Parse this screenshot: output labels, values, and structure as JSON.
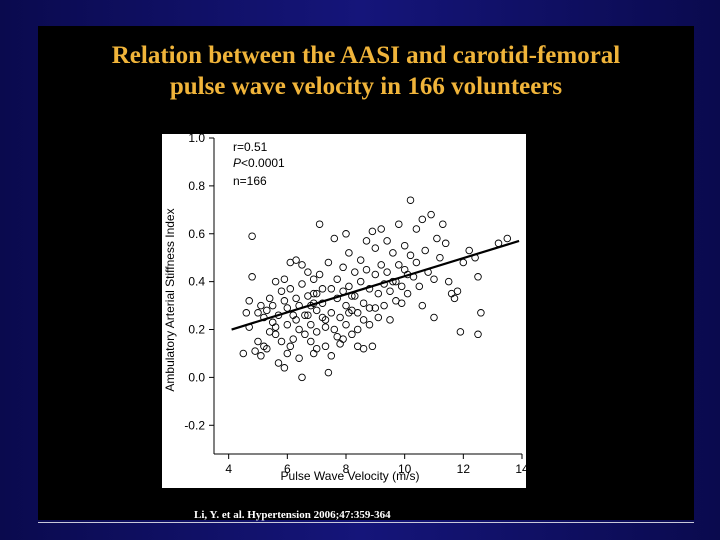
{
  "slide": {
    "title_line1": "Relation between the AASI and carotid-femoral",
    "title_line2": "pulse wave velocity in 166 volunteers",
    "citation": "Li, Y. et al. Hypertension 2006;47:359-364"
  },
  "colors": {
    "title": "#f0b43a",
    "background": "#0a0a4e",
    "panel": "#ffffff",
    "ink": "#000000"
  },
  "chart_data": {
    "type": "scatter",
    "title": "",
    "xlabel": "Pulse Wave Velocity (m/s)",
    "ylabel": "Ambulatory Arterial Stiffness Index",
    "xlim": [
      3.5,
      14
    ],
    "ylim": [
      -0.32,
      1.0
    ],
    "xticks": [
      4,
      6,
      8,
      10,
      12,
      14
    ],
    "yticks": [
      -0.2,
      0.0,
      0.2,
      0.4,
      0.6,
      0.8,
      1.0
    ],
    "xtick_labels": [
      "4",
      "6",
      "8",
      "10",
      "12",
      "14"
    ],
    "ytick_labels": [
      "-0.2",
      "0.0",
      "0.2",
      "0.4",
      "0.6",
      "0.8",
      "1.0"
    ],
    "annotations": {
      "r_label": "r=0.51",
      "p_symbol": "P",
      "p_value": "<0.0001",
      "n_label": "n=166"
    },
    "regression_line": {
      "x": [
        4.1,
        13.9
      ],
      "y": [
        0.2,
        0.57
      ]
    },
    "points": [
      [
        4.5,
        0.1
      ],
      [
        4.6,
        0.27
      ],
      [
        4.7,
        0.32
      ],
      [
        4.8,
        0.42
      ],
      [
        4.8,
        0.59
      ],
      [
        4.9,
        0.11
      ],
      [
        5.0,
        0.27
      ],
      [
        5.0,
        0.15
      ],
      [
        5.1,
        0.3
      ],
      [
        5.2,
        0.13
      ],
      [
        5.3,
        0.28
      ],
      [
        5.3,
        0.12
      ],
      [
        5.4,
        0.33
      ],
      [
        5.5,
        0.3
      ],
      [
        5.5,
        0.23
      ],
      [
        5.6,
        0.4
      ],
      [
        5.6,
        0.18
      ],
      [
        5.7,
        0.26
      ],
      [
        5.7,
        0.06
      ],
      [
        5.8,
        0.36
      ],
      [
        5.8,
        0.15
      ],
      [
        5.9,
        0.41
      ],
      [
        5.9,
        0.32
      ],
      [
        6.0,
        0.29
      ],
      [
        6.0,
        0.22
      ],
      [
        6.0,
        0.1
      ],
      [
        6.1,
        0.48
      ],
      [
        6.1,
        0.37
      ],
      [
        6.2,
        0.26
      ],
      [
        6.2,
        0.16
      ],
      [
        6.3,
        0.49
      ],
      [
        6.3,
        0.33
      ],
      [
        6.4,
        0.3
      ],
      [
        6.4,
        0.2
      ],
      [
        6.4,
        0.08
      ],
      [
        6.5,
        0.47
      ],
      [
        6.5,
        0.39
      ],
      [
        6.6,
        0.26
      ],
      [
        6.6,
        0.18
      ],
      [
        6.7,
        0.44
      ],
      [
        6.7,
        0.34
      ],
      [
        6.8,
        0.3
      ],
      [
        6.8,
        0.22
      ],
      [
        6.8,
        0.15
      ],
      [
        6.9,
        0.41
      ],
      [
        6.9,
        0.35
      ],
      [
        7.0,
        0.28
      ],
      [
        7.0,
        0.19
      ],
      [
        7.0,
        0.12
      ],
      [
        7.1,
        0.64
      ],
      [
        7.1,
        0.43
      ],
      [
        7.2,
        0.37
      ],
      [
        7.2,
        0.25
      ],
      [
        7.3,
        0.21
      ],
      [
        7.3,
        0.13
      ],
      [
        7.4,
        0.02
      ],
      [
        7.4,
        0.48
      ],
      [
        7.5,
        0.37
      ],
      [
        7.5,
        0.27
      ],
      [
        7.6,
        0.2
      ],
      [
        7.6,
        0.58
      ],
      [
        7.7,
        0.41
      ],
      [
        7.7,
        0.33
      ],
      [
        7.8,
        0.25
      ],
      [
        7.8,
        0.14
      ],
      [
        7.9,
        0.46
      ],
      [
        7.9,
        0.36
      ],
      [
        8.0,
        0.3
      ],
      [
        8.0,
        0.22
      ],
      [
        8.0,
        0.6
      ],
      [
        8.1,
        0.52
      ],
      [
        8.1,
        0.38
      ],
      [
        8.2,
        0.28
      ],
      [
        8.2,
        0.18
      ],
      [
        8.3,
        0.44
      ],
      [
        8.3,
        0.34
      ],
      [
        8.4,
        0.27
      ],
      [
        8.4,
        0.13
      ],
      [
        8.5,
        0.49
      ],
      [
        8.5,
        0.4
      ],
      [
        8.6,
        0.31
      ],
      [
        8.6,
        0.24
      ],
      [
        8.7,
        0.57
      ],
      [
        8.7,
        0.45
      ],
      [
        8.8,
        0.37
      ],
      [
        8.8,
        0.29
      ],
      [
        8.9,
        0.13
      ],
      [
        8.9,
        0.61
      ],
      [
        9.0,
        0.54
      ],
      [
        9.0,
        0.43
      ],
      [
        9.1,
        0.35
      ],
      [
        9.1,
        0.25
      ],
      [
        9.2,
        0.62
      ],
      [
        9.2,
        0.47
      ],
      [
        9.3,
        0.39
      ],
      [
        9.3,
        0.3
      ],
      [
        9.4,
        0.57
      ],
      [
        9.4,
        0.44
      ],
      [
        9.5,
        0.36
      ],
      [
        9.6,
        0.52
      ],
      [
        9.6,
        0.4
      ],
      [
        9.7,
        0.32
      ],
      [
        9.8,
        0.64
      ],
      [
        9.8,
        0.47
      ],
      [
        9.9,
        0.38
      ],
      [
        10.0,
        0.55
      ],
      [
        10.0,
        0.45
      ],
      [
        10.1,
        0.35
      ],
      [
        10.2,
        0.74
      ],
      [
        10.2,
        0.51
      ],
      [
        10.3,
        0.42
      ],
      [
        10.4,
        0.62
      ],
      [
        10.4,
        0.48
      ],
      [
        10.5,
        0.38
      ],
      [
        10.6,
        0.66
      ],
      [
        10.7,
        0.53
      ],
      [
        10.8,
        0.44
      ],
      [
        10.9,
        0.68
      ],
      [
        11.0,
        0.25
      ],
      [
        11.0,
        0.41
      ],
      [
        11.1,
        0.58
      ],
      [
        11.2,
        0.5
      ],
      [
        11.3,
        0.64
      ],
      [
        11.4,
        0.56
      ],
      [
        11.5,
        0.4
      ],
      [
        11.7,
        0.33
      ],
      [
        11.8,
        0.36
      ],
      [
        11.9,
        0.19
      ],
      [
        12.0,
        0.48
      ],
      [
        12.2,
        0.53
      ],
      [
        12.4,
        0.5
      ],
      [
        12.5,
        0.42
      ],
      [
        12.5,
        0.18
      ],
      [
        12.6,
        0.27
      ],
      [
        13.2,
        0.56
      ],
      [
        13.5,
        0.58
      ],
      [
        4.7,
        0.21
      ],
      [
        5.1,
        0.09
      ],
      [
        5.4,
        0.19
      ],
      [
        5.9,
        0.04
      ],
      [
        6.3,
        0.24
      ],
      [
        6.7,
        0.26
      ],
      [
        6.9,
        0.1
      ],
      [
        7.2,
        0.31
      ],
      [
        7.5,
        0.09
      ],
      [
        7.7,
        0.17
      ],
      [
        8.2,
        0.34
      ],
      [
        8.6,
        0.12
      ],
      [
        9.0,
        0.29
      ],
      [
        9.5,
        0.24
      ],
      [
        9.9,
        0.31
      ],
      [
        6.1,
        0.13
      ],
      [
        6.5,
        0.0
      ],
      [
        7.9,
        0.16
      ],
      [
        8.8,
        0.22
      ],
      [
        5.6,
        0.21
      ],
      [
        6.9,
        0.31
      ],
      [
        7.3,
        0.24
      ],
      [
        8.4,
        0.2
      ],
      [
        9.7,
        0.4
      ],
      [
        10.6,
        0.3
      ],
      [
        11.6,
        0.35
      ],
      [
        5.2,
        0.25
      ],
      [
        7.0,
        0.35
      ],
      [
        8.1,
        0.27
      ],
      [
        10.1,
        0.43
      ]
    ]
  }
}
